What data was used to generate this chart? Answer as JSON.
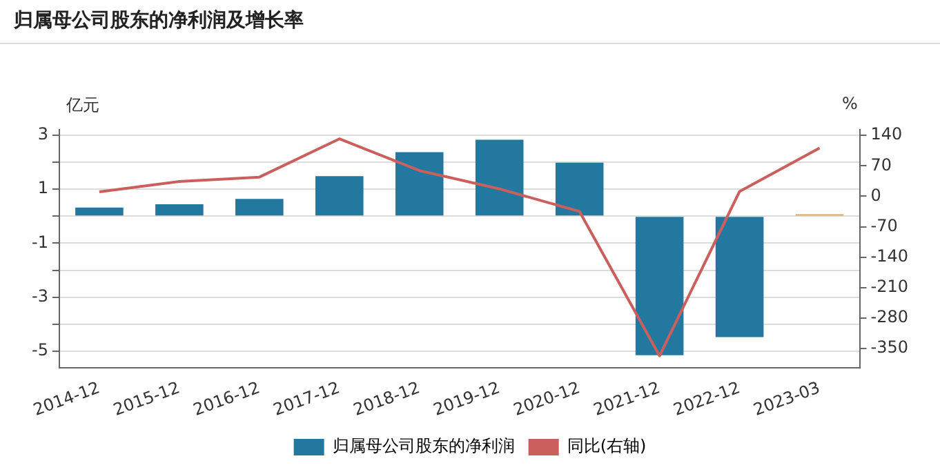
{
  "chart_data": {
    "type": "bar",
    "title": "归属母公司股东的净利润及增长率",
    "ylabel": "亿元",
    "y2label": "%",
    "categories": [
      "2014-12",
      "2015-12",
      "2016-12",
      "2017-12",
      "2018-12",
      "2019-12",
      "2020-12",
      "2021-12",
      "2022-12",
      "2023-03"
    ],
    "series": [
      {
        "name": "归属母公司股东的净利润",
        "color": "#22789f",
        "colors": [
          "#22789f",
          "#22789f",
          "#22789f",
          "#22789f",
          "#22789f",
          "#22789f",
          "#22789f",
          "#22789f",
          "#22789f",
          "#f0a030"
        ],
        "values": [
          0.32,
          0.44,
          0.64,
          1.48,
          2.37,
          2.83,
          1.98,
          -5.14,
          -4.47,
          0.07
        ]
      },
      {
        "name": "同比(右轴)",
        "type": "line",
        "axis": "y2",
        "color": "#c9605d",
        "values": [
          10,
          34,
          44,
          132,
          59,
          17,
          -35,
          -367,
          11,
          111
        ]
      }
    ],
    "ylim": [
      -5.6,
      3.2
    ],
    "yticks": [
      3,
      {
        "value": 2,
        "label": null
      },
      1,
      {
        "value": 0,
        "label": null
      },
      -1,
      {
        "value": -2,
        "label": null
      },
      -3,
      {
        "value": -4,
        "label": null
      },
      -5
    ],
    "y2lim": [
      -394,
      153
    ],
    "y2ticks": [
      140,
      70,
      0,
      -70,
      -140,
      -210,
      -280,
      -350
    ],
    "grid": "y",
    "legend": "bottom",
    "marker": "none"
  }
}
